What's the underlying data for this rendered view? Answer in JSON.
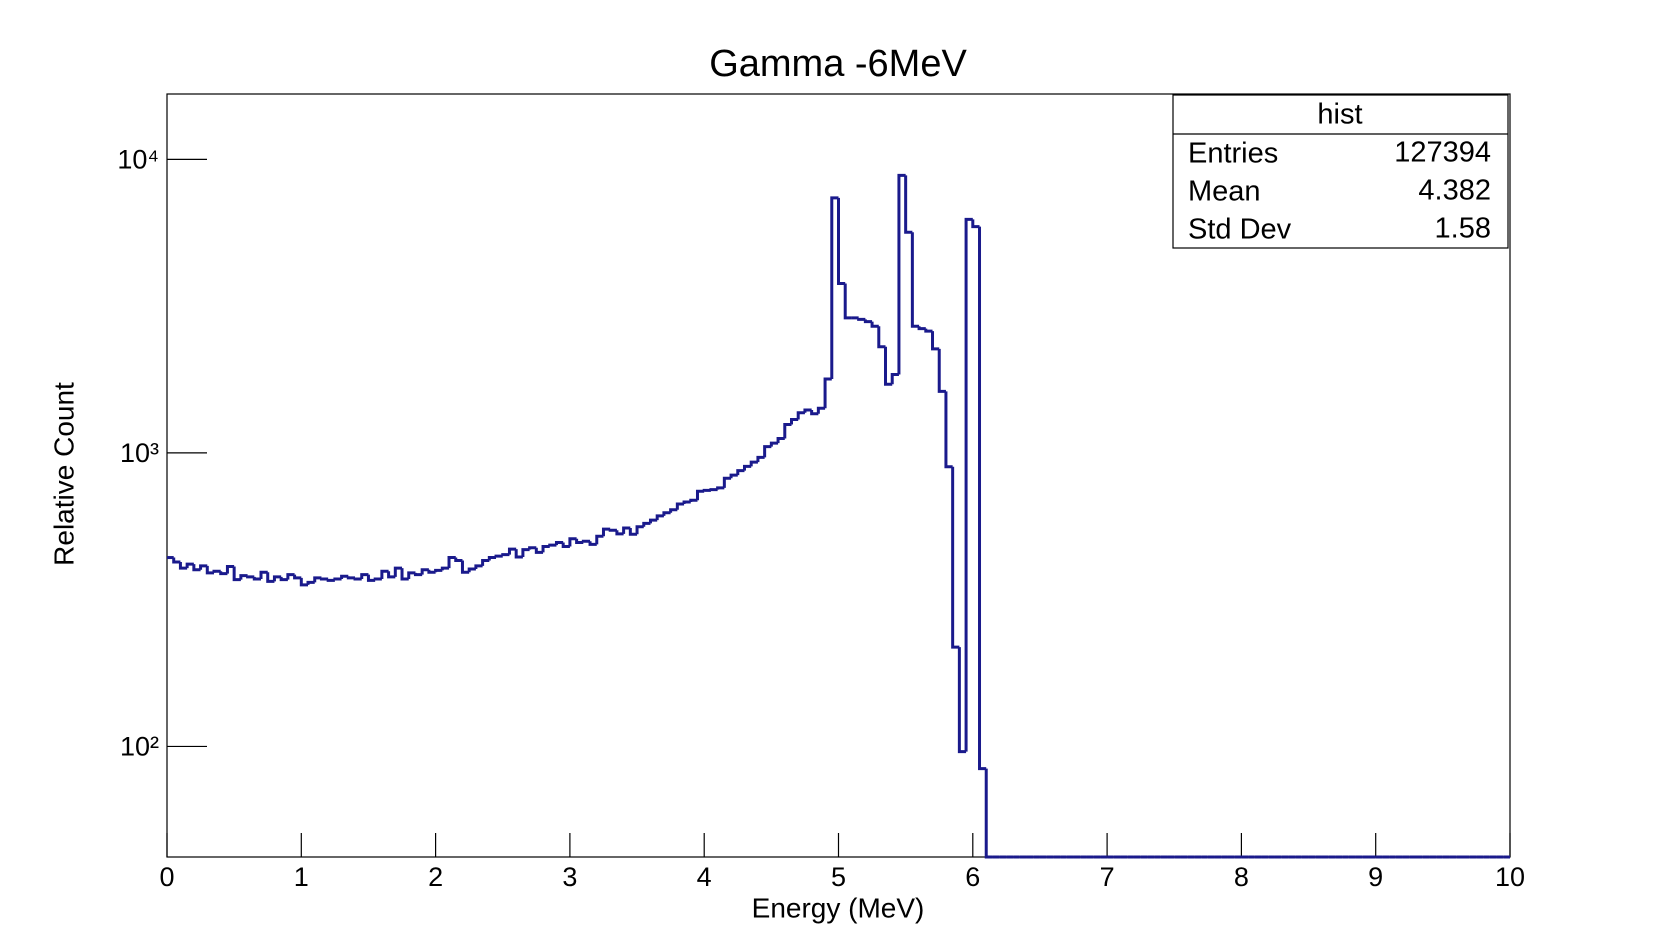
{
  "chart_data": {
    "type": "histogram",
    "title": "Gamma -6MeV",
    "x_label": "Energy (MeV)",
    "y_label": "Relative Count",
    "log_y": true,
    "color": "#1a1a8c",
    "xlim": [
      0,
      10
    ],
    "xticks": [
      0,
      1,
      2,
      3,
      4,
      5,
      6,
      7,
      8,
      9,
      10
    ],
    "ylim": [
      42,
      16700
    ],
    "yticks": [
      {
        "value": 100,
        "label": "10²"
      },
      {
        "value": 1000,
        "label": "10³"
      },
      {
        "value": 10000,
        "label": "10⁴"
      }
    ],
    "bins": [
      0,
      0.05,
      0.1,
      0.15,
      0.2,
      0.25,
      0.3,
      0.35,
      0.4,
      0.45,
      0.5,
      0.55,
      0.6,
      0.65,
      0.7,
      0.75,
      0.8,
      0.85,
      0.9,
      0.95,
      1,
      1.05,
      1.1,
      1.15,
      1.2,
      1.25,
      1.3,
      1.35,
      1.4,
      1.45,
      1.5,
      1.55,
      1.6,
      1.65,
      1.7,
      1.75,
      1.8,
      1.85,
      1.9,
      1.95,
      2,
      2.05,
      2.1,
      2.15,
      2.2,
      2.25,
      2.3,
      2.35,
      2.4,
      2.45,
      2.5,
      2.55,
      2.6,
      2.65,
      2.7,
      2.75,
      2.8,
      2.85,
      2.9,
      2.95,
      3,
      3.05,
      3.1,
      3.15,
      3.2,
      3.25,
      3.3,
      3.35,
      3.4,
      3.45,
      3.5,
      3.55,
      3.6,
      3.65,
      3.7,
      3.75,
      3.8,
      3.85,
      3.9,
      3.95,
      4,
      4.05,
      4.1,
      4.15,
      4.2,
      4.25,
      4.3,
      4.35,
      4.4,
      4.45,
      4.5,
      4.55,
      4.6,
      4.65,
      4.7,
      4.75,
      4.8,
      4.85,
      4.9,
      4.95,
      5,
      5.05,
      5.1,
      5.15,
      5.2,
      5.25,
      5.3,
      5.35,
      5.4,
      5.45,
      5.5,
      5.55,
      5.6,
      5.65,
      5.7,
      5.75,
      5.8,
      5.85,
      5.9,
      5.95,
      6,
      6.05,
      6.1,
      6.15,
      6.2,
      6.25,
      6.3,
      6.35,
      6.4,
      6.45,
      6.5,
      6.55,
      6.6,
      6.65,
      6.7,
      6.75,
      6.8,
      6.85,
      6.9,
      6.95,
      7,
      7.05,
      7.1,
      7.15,
      7.2,
      7.25,
      7.3,
      7.35,
      7.4,
      7.45,
      7.5,
      7.55,
      7.6,
      7.65,
      7.7,
      7.75,
      7.8,
      7.85,
      7.9,
      7.95,
      8,
      8.05,
      8.1,
      8.15,
      8.2,
      8.25,
      8.3,
      8.35,
      8.4,
      8.45,
      8.5,
      8.55,
      8.6,
      8.65,
      8.7,
      8.75,
      8.8,
      8.85,
      8.9,
      8.95,
      9,
      9.05,
      9.1,
      9.15,
      9.2,
      9.25,
      9.3,
      9.35,
      9.4,
      9.45,
      9.5,
      9.55,
      9.6,
      9.65,
      9.7,
      9.75,
      9.8,
      9.85,
      9.9,
      9.95,
      10
    ],
    "values": [
      440,
      425,
      405,
      418,
      400,
      412,
      390,
      395,
      388,
      410,
      370,
      382,
      378,
      372,
      392,
      365,
      378,
      370,
      385,
      375,
      355,
      362,
      375,
      372,
      368,
      372,
      380,
      375,
      372,
      385,
      368,
      372,
      395,
      378,
      405,
      372,
      390,
      385,
      400,
      392,
      398,
      405,
      440,
      430,
      392,
      402,
      412,
      430,
      440,
      445,
      450,
      470,
      442,
      468,
      475,
      458,
      480,
      485,
      495,
      480,
      510,
      495,
      500,
      488,
      520,
      550,
      545,
      530,
      555,
      528,
      560,
      575,
      590,
      610,
      625,
      640,
      670,
      680,
      690,
      740,
      745,
      750,
      760,
      820,
      840,
      870,
      900,
      930,
      965,
      1050,
      1080,
      1120,
      1250,
      1300,
      1370,
      1400,
      1360,
      1420,
      1786,
      7390,
      3777,
      2884,
      2884,
      2850,
      2800,
      2700,
      2300,
      1714,
      1850,
      8816,
      5647,
      2700,
      2650,
      2600,
      2262,
      1620,
      897,
      218,
      96,
      6245,
      5900,
      84,
      0,
      0,
      0,
      0,
      0,
      0,
      0,
      0,
      0,
      0,
      0,
      0,
      0,
      0,
      0,
      0,
      0,
      0,
      0,
      0,
      0,
      0,
      0,
      0,
      0,
      0,
      0,
      0,
      0,
      0,
      0,
      0,
      0,
      0,
      0,
      0,
      0,
      0,
      0,
      0,
      0,
      0,
      0,
      0,
      0,
      0,
      0,
      0,
      0,
      0,
      0,
      0,
      0,
      0,
      0,
      0,
      0,
      0,
      0,
      0,
      0,
      0,
      0,
      0,
      0,
      0,
      0,
      0,
      0,
      0,
      0,
      0,
      0,
      0,
      0,
      0,
      0,
      0
    ],
    "stats": {
      "title": "hist",
      "rows": [
        [
          "Entries",
          "127394"
        ],
        [
          "Mean",
          "4.382"
        ],
        [
          "Std Dev",
          "1.58"
        ]
      ]
    }
  }
}
